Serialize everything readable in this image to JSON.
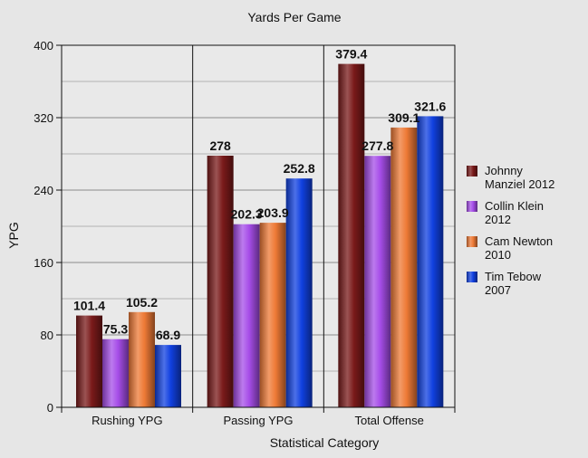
{
  "chart_data": {
    "type": "bar",
    "title": "Yards Per Game",
    "xlabel": "Statistical Category",
    "ylabel": "YPG",
    "ylim": [
      0,
      400
    ],
    "yticks": [
      0,
      80,
      160,
      240,
      320,
      400
    ],
    "categories": [
      "Rushing YPG",
      "Passing YPG",
      "Total Offense"
    ],
    "series": [
      {
        "name": "Johnny Manziel 2012",
        "legend_lines": [
          "Johnny",
          "Manziel 2012"
        ],
        "color": "#7a1a1a",
        "values": [
          101.4,
          278,
          379.4
        ],
        "labels": [
          "101.4",
          "278",
          "379.4"
        ]
      },
      {
        "name": "Collin Klein 2012",
        "legend_lines": [
          "Collin Klein",
          "2012"
        ],
        "color": "#a64de8",
        "values": [
          75.3,
          202.3,
          277.8
        ],
        "labels": [
          "75.3",
          "202.3",
          "277.8"
        ]
      },
      {
        "name": "Cam Newton 2010",
        "legend_lines": [
          "Cam Newton",
          "2010"
        ],
        "color": "#ee7a36",
        "values": [
          105.2,
          203.9,
          309.1
        ],
        "labels": [
          "105.2",
          "203.9",
          "309.1"
        ]
      },
      {
        "name": "Tim Tebow 2007",
        "legend_lines": [
          "Tim Tebow",
          "2007"
        ],
        "color": "#1040e0",
        "values": [
          68.9,
          252.8,
          321.6
        ],
        "labels": [
          "68.9",
          "252.8",
          "321.6"
        ]
      }
    ],
    "grid": true,
    "legend_position": "right"
  }
}
